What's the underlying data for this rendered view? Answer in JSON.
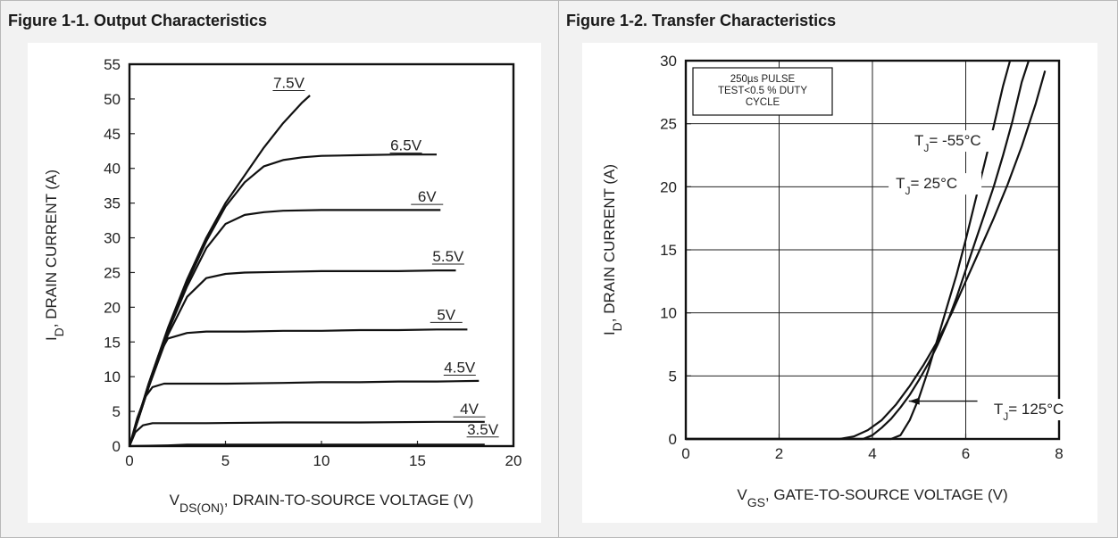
{
  "chart_data": [
    {
      "type": "line",
      "caption": "Figure 1-1. Output Characteristics",
      "xlabel_main": "V",
      "xlabel_sub": "DS(ON)",
      "xlabel_rest": ", DRAIN-TO-SOURCE VOLTAGE (V)",
      "ylabel_main": "I",
      "ylabel_sub": "D",
      "ylabel_rest": ", DRAIN CURRENT (A)",
      "xlim": [
        0,
        20
      ],
      "ylim": [
        0,
        55
      ],
      "xticks": [
        0,
        5,
        10,
        15,
        20
      ],
      "yticks": [
        0,
        5,
        10,
        15,
        20,
        25,
        30,
        35,
        40,
        45,
        50,
        55
      ],
      "grid": false,
      "series": [
        {
          "name": "7.5V",
          "x": [
            0,
            1,
            2,
            3,
            4,
            5,
            6,
            7,
            8,
            9,
            9.4
          ],
          "y": [
            0,
            9,
            17,
            24,
            30,
            35,
            39,
            43,
            46.5,
            49.5,
            50.5
          ]
        },
        {
          "name": "6.5V",
          "x": [
            0,
            1,
            2,
            3,
            4,
            5,
            6,
            7,
            8,
            9,
            10,
            12,
            14,
            16
          ],
          "y": [
            0,
            8.5,
            16.5,
            23.5,
            29.5,
            34.5,
            38,
            40.3,
            41.2,
            41.6,
            41.8,
            41.9,
            42,
            42
          ]
        },
        {
          "name": "6V",
          "x": [
            0,
            1,
            2,
            3,
            4,
            5,
            6,
            7,
            8,
            10,
            12,
            14,
            16.2
          ],
          "y": [
            0,
            8.5,
            16.5,
            23,
            28.5,
            32,
            33.3,
            33.7,
            33.9,
            34,
            34,
            34,
            34
          ]
        },
        {
          "name": "5.5V",
          "x": [
            0,
            1,
            2,
            3,
            4,
            5,
            6,
            8,
            10,
            12,
            14,
            16,
            17
          ],
          "y": [
            0,
            8.5,
            16,
            21.5,
            24.2,
            24.8,
            25,
            25.1,
            25.2,
            25.2,
            25.2,
            25.3,
            25.3
          ]
        },
        {
          "name": "5V",
          "x": [
            0,
            0.5,
            1,
            1.5,
            2,
            3,
            4,
            6,
            8,
            10,
            12,
            14,
            16,
            17.6
          ],
          "y": [
            0,
            4.5,
            9,
            13,
            15.5,
            16.3,
            16.5,
            16.5,
            16.6,
            16.6,
            16.7,
            16.7,
            16.8,
            16.8
          ]
        },
        {
          "name": "4.5V",
          "x": [
            0,
            0.4,
            0.8,
            1.2,
            1.8,
            3,
            5,
            8,
            10,
            12,
            14,
            16,
            18.2
          ],
          "y": [
            0,
            4,
            7,
            8.5,
            9,
            9,
            9,
            9.1,
            9.2,
            9.2,
            9.3,
            9.3,
            9.4
          ]
        },
        {
          "name": "4V",
          "x": [
            0,
            0.3,
            0.7,
            1.2,
            2,
            4,
            8,
            12,
            16,
            18.5
          ],
          "y": [
            0,
            2,
            3,
            3.3,
            3.3,
            3.3,
            3.4,
            3.4,
            3.5,
            3.5
          ]
        },
        {
          "name": "3.5V",
          "x": [
            0,
            2,
            3,
            6,
            10,
            14,
            18.5
          ],
          "y": [
            0,
            0.1,
            0.2,
            0.2,
            0.2,
            0.2,
            0.2
          ]
        }
      ],
      "annotations": [
        "7.5V",
        "6.5V",
        "6V",
        "5.5V",
        "5V",
        "4.5V",
        "4V",
        "3.5V"
      ]
    },
    {
      "type": "line",
      "caption": "Figure 1-2. Transfer Characteristics",
      "xlabel_main": "V",
      "xlabel_sub": "GS",
      "xlabel_rest": ", GATE-TO-SOURCE VOLTAGE (V)",
      "ylabel_main": "I",
      "ylabel_sub": "D",
      "ylabel_rest": ", DRAIN CURRENT (A)",
      "xlim": [
        0,
        8
      ],
      "ylim": [
        0,
        30
      ],
      "xticks": [
        0,
        2,
        4,
        6,
        8
      ],
      "yticks": [
        0,
        5,
        10,
        15,
        20,
        25,
        30
      ],
      "grid": true,
      "note_lines": [
        "250µs PULSE",
        "TEST<0.5 % DUTY",
        "CYCLE"
      ],
      "series": [
        {
          "name": "T_J = -55°C",
          "x": [
            0,
            4.4,
            4.6,
            4.8,
            5.0,
            5.2,
            5.4,
            5.6,
            5.8,
            6.0,
            6.2,
            6.4,
            6.6,
            6.8,
            6.95
          ],
          "y": [
            0,
            0,
            0.3,
            1.5,
            3.3,
            5.5,
            8,
            10.5,
            13,
            15.8,
            18.8,
            21.8,
            24.8,
            28,
            30
          ]
        },
        {
          "name": "T_J = 25°C",
          "x": [
            0,
            3.8,
            4.0,
            4.2,
            4.4,
            4.6,
            4.8,
            5.0,
            5.2,
            5.4,
            5.6,
            5.8,
            6.0,
            6.2,
            6.4,
            6.6,
            6.8,
            7.0,
            7.2,
            7.35
          ],
          "y": [
            0,
            0,
            0.3,
            0.9,
            1.6,
            2.5,
            3.5,
            4.7,
            6,
            7.5,
            9.2,
            11.2,
            13.4,
            15.6,
            17.8,
            20,
            22.5,
            25.2,
            28.3,
            30
          ]
        },
        {
          "name": "T_J = 125°C",
          "x": [
            0,
            3.3,
            3.6,
            3.9,
            4.2,
            4.5,
            4.8,
            5.1,
            5.4,
            5.7,
            6.0,
            6.3,
            6.6,
            6.9,
            7.2,
            7.5,
            7.7
          ],
          "y": [
            0,
            0,
            0.2,
            0.7,
            1.5,
            2.7,
            4.2,
            5.9,
            7.8,
            10,
            12.5,
            15,
            17.5,
            20.2,
            23.2,
            26.6,
            29.2
          ]
        }
      ],
      "annotations": [
        {
          "main": "T",
          "sub": "J",
          "rest": "= -55°C"
        },
        {
          "main": "T",
          "sub": "J",
          "rest": "= 25°C"
        },
        {
          "main": "T",
          "sub": "J",
          "rest": "= 125°C"
        }
      ]
    }
  ]
}
